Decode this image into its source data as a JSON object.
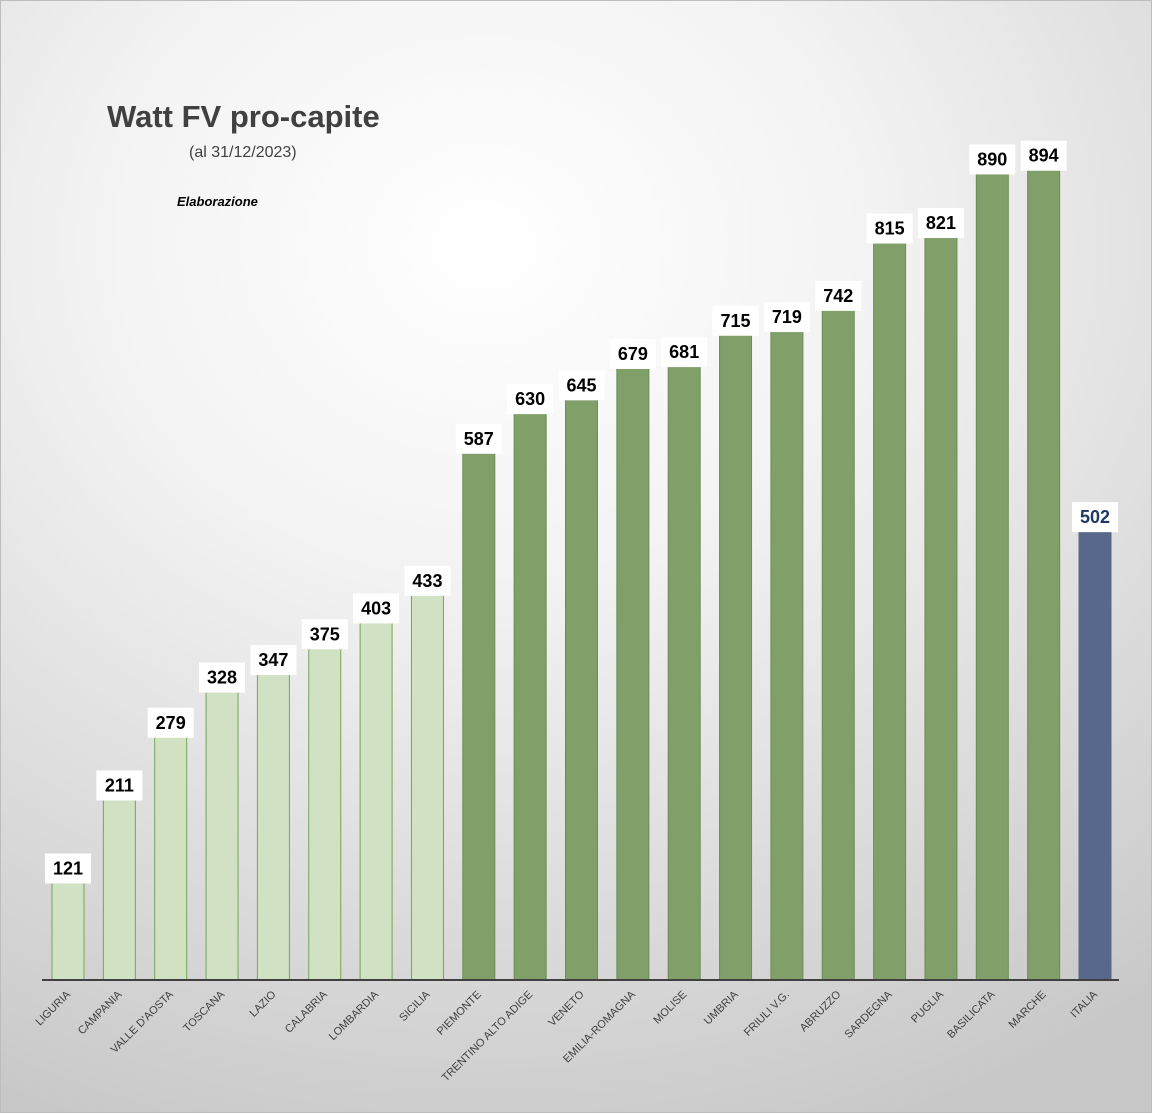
{
  "chart_data": {
    "type": "bar",
    "title": "Watt FV pro-capite",
    "subtitle": "(al 31/12/2023)",
    "note": "Elaborazione",
    "xlabel": "",
    "ylabel": "",
    "ylim": [
      0,
      1000
    ],
    "grid": false,
    "legend": "none",
    "categories": [
      "LIGURIA",
      "CAMPANIA",
      "VALLE D'AOSTA",
      "TOSCANA",
      "LAZIO",
      "CALABRIA",
      "LOMBARDIA",
      "SICILIA",
      "PIEMONTE",
      "TRENTINO ALTO ADIGE",
      "VENETO",
      "EMILIA-ROMAGNA",
      "MOLISE",
      "UMBRIA",
      "FRIULI V.G.",
      "ABRUZZO",
      "SARDEGNA",
      "PUGLIA",
      "BASILICATA",
      "MARCHE",
      "ITALIA"
    ],
    "values": [
      121,
      211,
      279,
      328,
      347,
      375,
      403,
      433,
      587,
      630,
      645,
      679,
      681,
      715,
      719,
      742,
      815,
      821,
      890,
      894,
      502
    ],
    "bar_heights_shown": [
      121,
      211,
      279,
      328,
      347,
      375,
      403,
      433,
      587,
      630,
      645,
      679,
      681,
      715,
      719,
      742,
      815,
      821,
      890,
      894,
      502
    ],
    "colors": {
      "low": "#d1e2c4",
      "low_border": "#75a655",
      "high": "#809f69",
      "high_border": "#6b8d55",
      "total": "#58688a",
      "total_label": "#1f3864",
      "label_text": "#000000"
    },
    "group": [
      "low",
      "low",
      "low",
      "low",
      "low",
      "low",
      "low",
      "low",
      "high",
      "high",
      "high",
      "high",
      "high",
      "high",
      "high",
      "high",
      "high",
      "high",
      "high",
      "high",
      "total"
    ]
  }
}
